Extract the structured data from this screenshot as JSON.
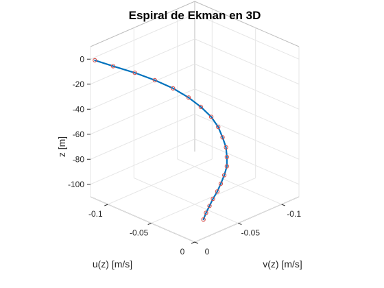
{
  "chart_data": {
    "type": "line",
    "title": "Espiral de Ekman en 3D",
    "xlabel": "u(z) [m/s]",
    "ylabel": "v(z) [m/s]",
    "zlabel": "z [m]",
    "x_ticks": [
      "-0.1",
      "-0.05",
      "0"
    ],
    "y_ticks": [
      "-0.1",
      "-0.05",
      "0"
    ],
    "z_ticks": [
      "0",
      "-20",
      "-40",
      "-60",
      "-80",
      "-100"
    ],
    "xlim": [
      -0.12,
      0
    ],
    "ylim": [
      -0.12,
      0
    ],
    "zlim": [
      -110,
      10
    ],
    "grid": true,
    "line_color": "#0072BD",
    "marker_color": "#D9534F",
    "series": [
      {
        "u": [
          -0.116,
          -0.106,
          -0.093,
          -0.08,
          -0.067,
          -0.054,
          -0.043,
          -0.032,
          -0.023,
          -0.015,
          -0.008,
          -0.003,
          0.001,
          0.003,
          0.004,
          0.004,
          0.003,
          0.002,
          0.001,
          0.0
        ],
        "v": [
          -0.001,
          -0.012,
          -0.024,
          -0.034,
          -0.042,
          -0.047,
          -0.05,
          -0.051,
          -0.05,
          -0.047,
          -0.044,
          -0.04,
          -0.036,
          -0.031,
          -0.026,
          -0.022,
          -0.018,
          -0.015,
          -0.012,
          -0.01
        ],
        "z": [
          0,
          -5,
          -10,
          -15,
          -20,
          -25,
          -30,
          -35,
          -40,
          -45,
          -50,
          -55,
          -60,
          -65,
          -70,
          -75,
          -80,
          -85,
          -90,
          -95
        ]
      }
    ]
  }
}
